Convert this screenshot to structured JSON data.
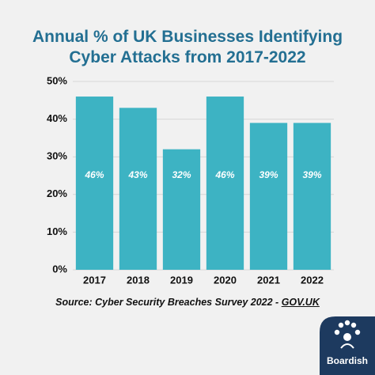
{
  "chart_data": {
    "type": "bar",
    "title": "Annual % of UK Businesses Identifying Cyber Attacks from 2017-2022",
    "categories": [
      "2017",
      "2018",
      "2019",
      "2020",
      "2021",
      "2022"
    ],
    "values": [
      46,
      43,
      32,
      46,
      39,
      39
    ],
    "value_labels": [
      "46%",
      "43%",
      "32%",
      "46%",
      "39%",
      "39%"
    ],
    "color": "#3db3c3",
    "ylim": [
      0,
      50
    ],
    "yticks": [
      {
        "value": 0,
        "label": "0%"
      },
      {
        "value": 10,
        "label": "10%"
      },
      {
        "value": 20,
        "label": "20%"
      },
      {
        "value": 30,
        "label": "30%"
      },
      {
        "value": 40,
        "label": "40%"
      },
      {
        "value": 50,
        "label": "50%"
      }
    ],
    "grid": true,
    "source": "Source: Cyber Security Breaches Survey 2022 - ",
    "source_link": "GOV.UK"
  },
  "brand": "Boardish"
}
